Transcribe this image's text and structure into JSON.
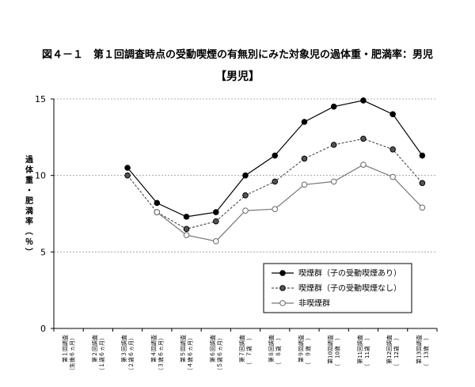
{
  "chart_data": {
    "type": "line",
    "title": "図４－１　第１回調査時点の受動喫煙の有無別にみた対象児の過体重・肥満率：男児",
    "subtitle": "【男児】",
    "xlabel": "",
    "ylabel": "過体重・肥満率（％）",
    "ylim": [
      0,
      15
    ],
    "yticks": [
      0,
      5,
      10,
      15
    ],
    "grid": true,
    "legend_position": "bottom-right",
    "categories": [
      [
        "第１回調査",
        "（生後６ヵ月）"
      ],
      [
        "第２回調査",
        "（１歳６ヵ月）"
      ],
      [
        "第３回調査",
        "（２歳６ヵ月）"
      ],
      [
        "第４回調査",
        "（３歳６ヵ月）"
      ],
      [
        "第５回調査",
        "（４歳６ヵ月）"
      ],
      [
        "第６回調査",
        "（５歳６ヵ月）"
      ],
      [
        "第７回調査",
        "（　７歳　）"
      ],
      [
        "第８回調査",
        "（　８歳　）"
      ],
      [
        "第９回調査",
        "（　９歳　）"
      ],
      [
        "第10回調査",
        "（　10歳　）"
      ],
      [
        "第11回調査",
        "（　11歳　）"
      ],
      [
        "第12回調査",
        "（　12歳　）"
      ],
      [
        "第13回調査",
        "（　13歳　）"
      ]
    ],
    "series": [
      {
        "name": "喫煙群（子の受動喫煙あり）",
        "color": "#000000",
        "marker": "filled-black",
        "dash": "solid",
        "values": [
          null,
          null,
          10.5,
          8.2,
          7.3,
          7.6,
          10.0,
          11.3,
          13.5,
          14.5,
          14.9,
          14.0,
          11.3
        ]
      },
      {
        "name": "喫煙群（子の受動喫煙なし）",
        "color": "#555555",
        "marker": "filled-gray",
        "dash": "dashed",
        "values": [
          null,
          null,
          10.0,
          7.6,
          6.5,
          7.0,
          8.7,
          9.6,
          11.1,
          12.0,
          12.4,
          11.7,
          9.5
        ]
      },
      {
        "name": "非喫煙群",
        "color": "#777777",
        "marker": "open",
        "dash": "solid",
        "values": [
          null,
          null,
          null,
          7.6,
          6.1,
          5.7,
          7.7,
          7.8,
          9.4,
          9.6,
          10.7,
          9.9,
          7.9
        ]
      }
    ]
  }
}
